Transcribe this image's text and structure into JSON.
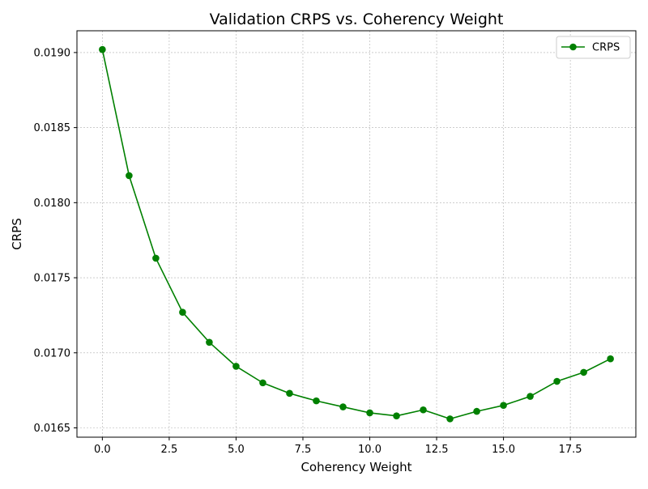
{
  "chart_data": {
    "type": "line",
    "title": "Validation CRPS vs. Coherency Weight",
    "xlabel": "Coherency Weight",
    "ylabel": "CRPS",
    "x": [
      0,
      1,
      2,
      3,
      4,
      5,
      6,
      7,
      8,
      9,
      10,
      11,
      12,
      13,
      14,
      15,
      16,
      17,
      18,
      19
    ],
    "series": [
      {
        "name": "CRPS",
        "color": "#008000",
        "marker": "circle",
        "values": [
          0.01902,
          0.01818,
          0.01763,
          0.01727,
          0.01707,
          0.01691,
          0.0168,
          0.01673,
          0.01668,
          0.01664,
          0.0166,
          0.01658,
          0.01662,
          0.01656,
          0.01661,
          0.01665,
          0.01671,
          0.01681,
          0.01687,
          0.01696
        ]
      }
    ],
    "xlim": [
      -0.95,
      19.95
    ],
    "ylim": [
      0.016438,
      0.019145
    ],
    "xticks": [
      0,
      2.5,
      5,
      7.5,
      10,
      12.5,
      15,
      17.5
    ],
    "xtick_labels": [
      "0.0",
      "2.5",
      "5.0",
      "7.5",
      "10.0",
      "12.5",
      "15.0",
      "17.5"
    ],
    "yticks": [
      0.0165,
      0.017,
      0.0175,
      0.018,
      0.0185,
      0.019
    ],
    "ytick_labels": [
      "0.0165",
      "0.0170",
      "0.0175",
      "0.0180",
      "0.0185",
      "0.0190"
    ],
    "grid": true,
    "legend_position": "top-right"
  }
}
